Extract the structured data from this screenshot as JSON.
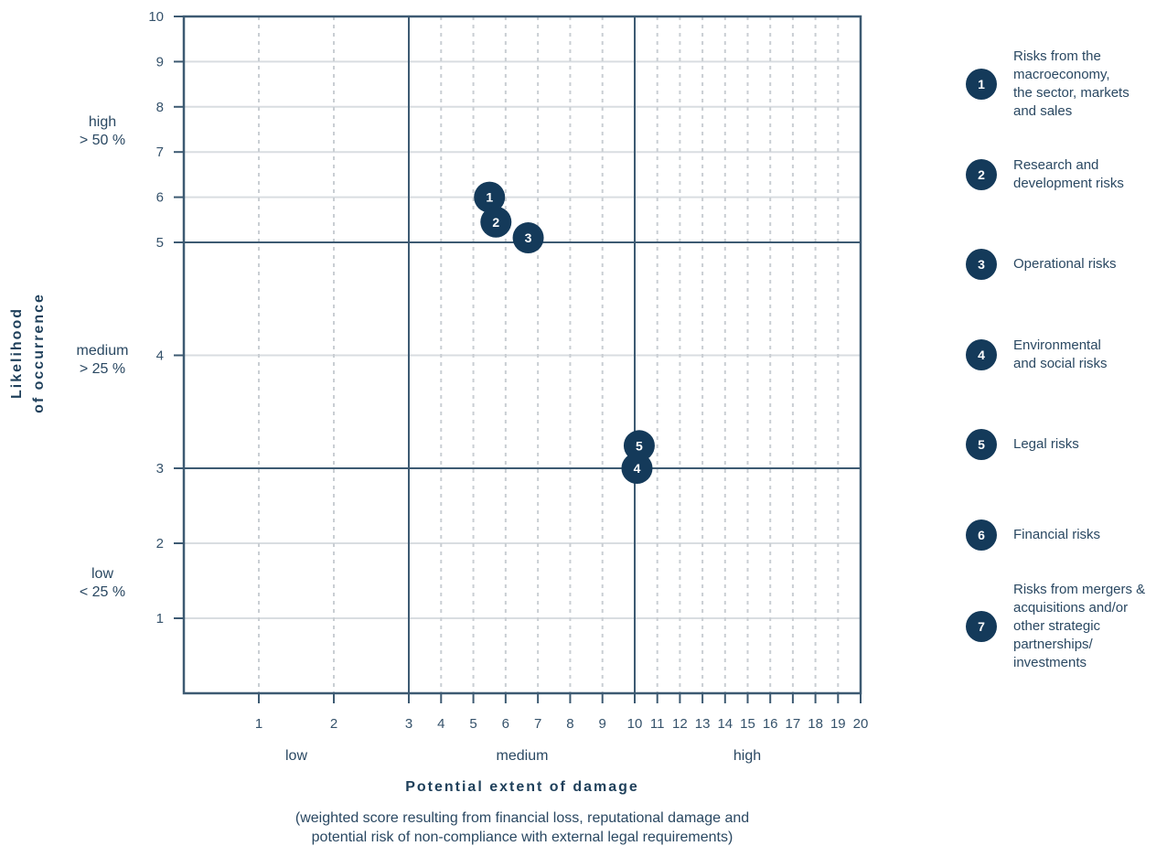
{
  "chart_data": {
    "type": "scatter",
    "title": "",
    "xlabel": "Potential extent of damage",
    "xlabel_note": "(weighted score resulting from financial loss, reputational damage and\npotential risk of non-compliance with external legal requirements)",
    "ylabel": "Likelihood\nof occurrence",
    "x_ticks": [
      "1",
      "2",
      "3",
      "4",
      "5",
      "6",
      "7",
      "8",
      "9",
      "10",
      "11",
      "12",
      "13",
      "14",
      "15",
      "16",
      "17",
      "18",
      "19",
      "20"
    ],
    "y_ticks": [
      "1",
      "2",
      "3",
      "4",
      "5",
      "6",
      "7",
      "8",
      "9",
      "10"
    ],
    "x_bands": [
      "low",
      "medium",
      "high"
    ],
    "y_bands": [
      {
        "label": "high\n> 50 %"
      },
      {
        "label": "medium\n> 25 %"
      },
      {
        "label": "low\n< 25 %"
      }
    ],
    "thresholds": {
      "x": [
        3,
        10
      ],
      "y": [
        3,
        5
      ]
    },
    "xlim": [
      0,
      20
    ],
    "ylim": [
      0,
      10
    ],
    "grid": true,
    "points": [
      {
        "id": "1",
        "x": 5.5,
        "y": 6.0
      },
      {
        "id": "2",
        "x": 5.7,
        "y": 5.45
      },
      {
        "id": "3",
        "x": 6.7,
        "y": 5.1
      },
      {
        "id": "4",
        "x": 10.1,
        "y": 3.0
      },
      {
        "id": "5",
        "x": 10.2,
        "y": 3.2
      }
    ],
    "legend_position": "right",
    "point_color": "#143a5a"
  },
  "legend": [
    {
      "num": "1",
      "text": "Risks from the\nmacroeconomy,\nthe sector, markets\nand sales"
    },
    {
      "num": "2",
      "text": "Research and\ndevelopment risks"
    },
    {
      "num": "3",
      "text": "Operational risks"
    },
    {
      "num": "4",
      "text": "Environmental\nand social risks"
    },
    {
      "num": "5",
      "text": "Legal risks"
    },
    {
      "num": "6",
      "text": "Financial risks"
    },
    {
      "num": "7",
      "text": "Risks from mergers &\nacquisitions and/or\nother strategic\npartnerships/\ninvestments"
    }
  ]
}
